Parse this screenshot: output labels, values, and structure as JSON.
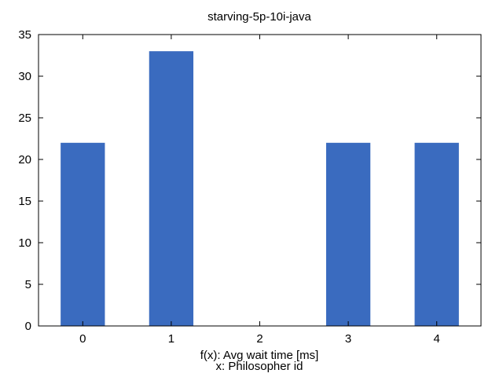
{
  "chart_data": {
    "type": "bar",
    "title": "starving-5p-10i-java",
    "xlabel_lines": [
      "f(x): Avg wait time [ms]",
      "x: Philosopher id"
    ],
    "ylabel": "",
    "categories": [
      "0",
      "1",
      "2",
      "3",
      "4"
    ],
    "values": [
      22,
      33,
      0,
      22,
      22
    ],
    "ylim": [
      0,
      35
    ],
    "yticks": [
      0,
      5,
      10,
      15,
      20,
      25,
      30,
      35
    ],
    "grid": false,
    "legend": "none",
    "bar_color": "#3a6bbf"
  }
}
